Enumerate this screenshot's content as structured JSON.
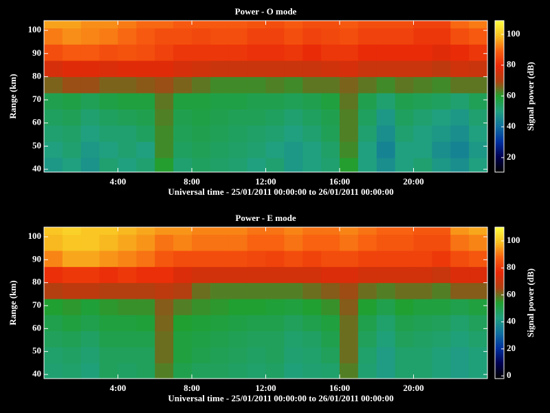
{
  "chart_data": [
    {
      "type": "heatmap",
      "title": "Power - O mode",
      "xlabel": "Universal time - 25/01/2011 00:00:00 to 26/01/2011 00:00:00",
      "ylabel": "Range (km)",
      "zlabel": "Signal power (dB)",
      "xlim": [
        0,
        24
      ],
      "ylim": [
        38.8,
        104.2
      ],
      "zlim": [
        10.6,
        108.9
      ],
      "xticks": [
        {
          "value": 4,
          "label": "4:00"
        },
        {
          "value": 8,
          "label": "8:00"
        },
        {
          "value": 12,
          "label": "12:00"
        },
        {
          "value": 16,
          "label": "16:00"
        },
        {
          "value": 20,
          "label": "20:00"
        }
      ],
      "yticks": [
        40,
        50,
        60,
        70,
        80,
        90,
        100
      ],
      "zticks": [
        20,
        40,
        60,
        80,
        100
      ],
      "colormap": [
        "#000000",
        "#000050",
        "#0030a0",
        "#1070a0",
        "#20a080",
        "#20a030",
        "#b04010",
        "#e82808",
        "#f86010",
        "#f8c020",
        "#ffff40"
      ],
      "x": [
        0,
        1,
        2,
        3,
        4,
        5,
        6,
        7,
        8,
        9,
        10,
        11,
        12,
        13,
        14,
        15,
        16,
        17,
        18,
        19,
        20,
        21,
        22,
        23
      ],
      "y": [
        38,
        45,
        52,
        59,
        66,
        73,
        80,
        87,
        94,
        101
      ],
      "z": [
        [
          48,
          50,
          47,
          52,
          50,
          52,
          60,
          52,
          54,
          53,
          52,
          50,
          52,
          48,
          50,
          52,
          60,
          50,
          46,
          50,
          52,
          48,
          46,
          50
        ],
        [
          50,
          52,
          48,
          50,
          52,
          50,
          62,
          54,
          55,
          54,
          53,
          52,
          50,
          48,
          50,
          53,
          62,
          50,
          44,
          50,
          50,
          46,
          44,
          48
        ],
        [
          52,
          53,
          50,
          52,
          52,
          54,
          62,
          55,
          56,
          55,
          54,
          53,
          52,
          50,
          52,
          55,
          63,
          52,
          46,
          52,
          50,
          48,
          46,
          50
        ],
        [
          54,
          55,
          52,
          54,
          55,
          56,
          63,
          56,
          57,
          56,
          55,
          55,
          54,
          52,
          54,
          56,
          63,
          54,
          48,
          54,
          52,
          50,
          48,
          52
        ],
        [
          56,
          57,
          55,
          57,
          58,
          58,
          64,
          58,
          58,
          57,
          57,
          56,
          56,
          55,
          56,
          58,
          64,
          56,
          52,
          56,
          55,
          54,
          52,
          55
        ],
        [
          66,
          68,
          68,
          66,
          66,
          67,
          68,
          66,
          64,
          62,
          62,
          62,
          63,
          62,
          64,
          64,
          66,
          64,
          62,
          64,
          63,
          62,
          64,
          64
        ],
        [
          76,
          78,
          78,
          77,
          78,
          78,
          78,
          76,
          75,
          74,
          74,
          74,
          74,
          74,
          74,
          75,
          76,
          74,
          74,
          74,
          74,
          72,
          75,
          74
        ],
        [
          86,
          88,
          88,
          86,
          87,
          86,
          84,
          82,
          82,
          82,
          82,
          81,
          81,
          82,
          80,
          82,
          82,
          80,
          80,
          80,
          80,
          78,
          80,
          82
        ],
        [
          92,
          94,
          93,
          92,
          90,
          88,
          86,
          86,
          85,
          86,
          86,
          84,
          84,
          86,
          84,
          85,
          86,
          84,
          84,
          84,
          82,
          82,
          86,
          88
        ],
        [
          96,
          96,
          94,
          94,
          92,
          90,
          90,
          88,
          88,
          88,
          88,
          87,
          86,
          88,
          86,
          86,
          88,
          86,
          86,
          86,
          84,
          84,
          90,
          92
        ]
      ]
    },
    {
      "type": "heatmap",
      "title": "Power - E mode",
      "xlabel": "Universal time - 25/01/2011 00:00:00 to 26/01/2011 00:00:00",
      "ylabel": "Range (km)",
      "zlabel": "Signal power (dB)",
      "xlim": [
        0,
        24
      ],
      "ylim": [
        38.2,
        104.2
      ],
      "zlim": [
        -2,
        110.2
      ],
      "xticks": [
        {
          "value": 4,
          "label": "4:00"
        },
        {
          "value": 8,
          "label": "8:00"
        },
        {
          "value": 12,
          "label": "12:00"
        },
        {
          "value": 16,
          "label": "16:00"
        },
        {
          "value": 20,
          "label": "20:00"
        }
      ],
      "yticks": [
        40,
        50,
        60,
        70,
        80,
        90,
        100
      ],
      "zticks": [
        0,
        20,
        40,
        60,
        80,
        100
      ],
      "colormap": [
        "#000000",
        "#000050",
        "#0030a0",
        "#1070a0",
        "#20a080",
        "#20a030",
        "#b04010",
        "#e82808",
        "#f86010",
        "#f8c020",
        "#ffff40"
      ],
      "x": [
        0,
        1,
        2,
        3,
        4,
        5,
        6,
        7,
        8,
        9,
        10,
        11,
        12,
        13,
        14,
        15,
        16,
        17,
        18,
        19,
        20,
        21,
        22,
        23
      ],
      "y": [
        38,
        45,
        52,
        59,
        66,
        73,
        80,
        87,
        94,
        101
      ],
      "z": [
        [
          45,
          46,
          44,
          48,
          47,
          48,
          58,
          50,
          48,
          48,
          47,
          46,
          47,
          44,
          45,
          46,
          58,
          45,
          42,
          46,
          46,
          44,
          42,
          44
        ],
        [
          46,
          47,
          45,
          48,
          48,
          48,
          60,
          52,
          50,
          49,
          48,
          47,
          48,
          45,
          46,
          48,
          60,
          46,
          42,
          46,
          46,
          44,
          42,
          44
        ],
        [
          48,
          49,
          47,
          50,
          50,
          50,
          60,
          52,
          51,
          50,
          49,
          48,
          48,
          46,
          47,
          50,
          60,
          48,
          44,
          48,
          47,
          46,
          44,
          46
        ],
        [
          50,
          52,
          50,
          52,
          52,
          53,
          61,
          54,
          53,
          52,
          51,
          50,
          50,
          48,
          50,
          52,
          60,
          50,
          46,
          50,
          49,
          48,
          46,
          48
        ],
        [
          54,
          55,
          53,
          55,
          56,
          56,
          62,
          58,
          56,
          55,
          54,
          54,
          53,
          52,
          54,
          56,
          62,
          54,
          50,
          54,
          52,
          52,
          50,
          52
        ],
        [
          66,
          68,
          68,
          66,
          66,
          66,
          68,
          66,
          60,
          58,
          58,
          58,
          58,
          58,
          60,
          62,
          64,
          60,
          58,
          60,
          60,
          58,
          62,
          62
        ],
        [
          78,
          80,
          80,
          78,
          80,
          78,
          78,
          74,
          72,
          72,
          72,
          72,
          72,
          72,
          72,
          74,
          74,
          72,
          72,
          72,
          72,
          70,
          74,
          74
        ],
        [
          92,
          96,
          96,
          94,
          92,
          90,
          86,
          84,
          84,
          84,
          84,
          83,
          82,
          84,
          82,
          84,
          84,
          82,
          82,
          82,
          82,
          80,
          84,
          86
        ],
        [
          98,
          100,
          100,
          98,
          96,
          94,
          90,
          92,
          90,
          90,
          90,
          88,
          88,
          90,
          88,
          88,
          90,
          88,
          86,
          86,
          84,
          84,
          90,
          92
        ],
        [
          100,
          102,
          100,
          100,
          98,
          96,
          94,
          94,
          92,
          92,
          92,
          90,
          90,
          92,
          90,
          90,
          92,
          90,
          88,
          88,
          86,
          86,
          94,
          96
        ]
      ]
    }
  ]
}
